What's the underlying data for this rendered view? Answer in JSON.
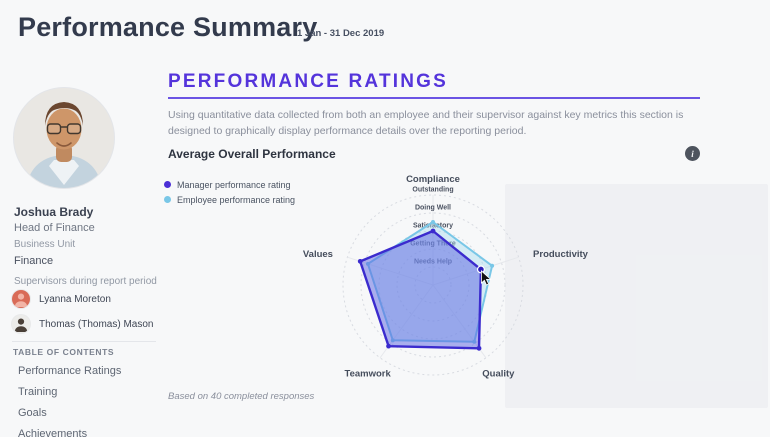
{
  "header": {
    "title": "Performance Summary",
    "date_range": "1 Jan - 31 Dec 2019"
  },
  "sidebar": {
    "profile": {
      "name": "Joshua Brady",
      "role": "Head of Finance"
    },
    "business_unit_label": "Business Unit",
    "business_unit_value": "Finance",
    "supervisors_label": "Supervisors during report period",
    "supervisors": [
      {
        "name": "Lyanna Moreton",
        "avatar_bg": "#d96b57",
        "avatar_fg": "#f2b4a6"
      },
      {
        "name": "Thomas (Thomas) Mason",
        "avatar_bg": "#ececea",
        "avatar_fg": "#4a4038"
      }
    ],
    "toc_label": "TABLE OF CONTENTS",
    "toc_items": [
      "Performance Ratings",
      "Training",
      "Goals",
      "Achievements"
    ]
  },
  "main": {
    "section_title": "PERFORMANCE RATINGS",
    "description": "Using quantitative data collected from both an employee and their supervisor against key metrics this section is designed to graphically display performance details over the reporting period.",
    "subsection_title": "Average Overall Performance",
    "info_icon_glyph": "i",
    "footnote": "Based on 40 completed responses",
    "accent_color": "#5434db"
  },
  "chart_data": {
    "type": "radar",
    "title": "Average Overall Performance",
    "categories": [
      "Compliance",
      "Productivity",
      "Quality",
      "Teamwork",
      "Values"
    ],
    "ring_labels": [
      "Needs Help",
      "Getting There",
      "Satisfactory",
      "Doing Well",
      "Outstanding"
    ],
    "max": 5,
    "legend_position": "top-left",
    "series": [
      {
        "name": "Manager performance rating",
        "color": "#3b2bce",
        "fill": "rgba(91,100,226,0.50)",
        "values": [
          3.0,
          2.8,
          4.35,
          4.2,
          4.25
        ]
      },
      {
        "name": "Employee performance rating",
        "color": "#79c7e7",
        "fill": "rgba(158,214,238,0.40)",
        "values": [
          3.5,
          3.45,
          3.9,
          3.8,
          3.8
        ]
      }
    ],
    "cursor": {
      "series_index": 0,
      "category_index": 1
    }
  }
}
